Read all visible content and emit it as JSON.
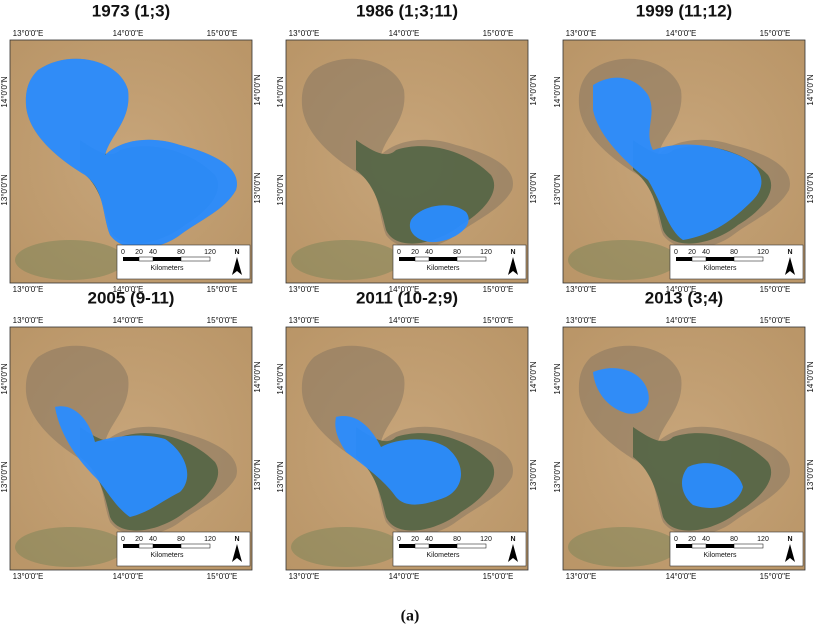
{
  "panels": [
    {
      "title": "1973 (1;3)"
    },
    {
      "title": "1986 (1;3;11)"
    },
    {
      "title": "1999 (11;12)"
    },
    {
      "title": "2005 (9-11)"
    },
    {
      "title": "2011 (10-2;9)"
    },
    {
      "title": "2013 (3;4)"
    }
  ],
  "axes": {
    "longitudes": [
      "13°0'0\"E",
      "14°0'0\"E",
      "15°0'0\"E"
    ],
    "latitudes": [
      "14°0'0\"N",
      "13°0'0\"N"
    ]
  },
  "scale_bar": {
    "ticks": [
      "0",
      "20",
      "40",
      "80",
      "120"
    ],
    "unit": "Kilometers",
    "north": "N"
  },
  "caption": "(a)"
}
